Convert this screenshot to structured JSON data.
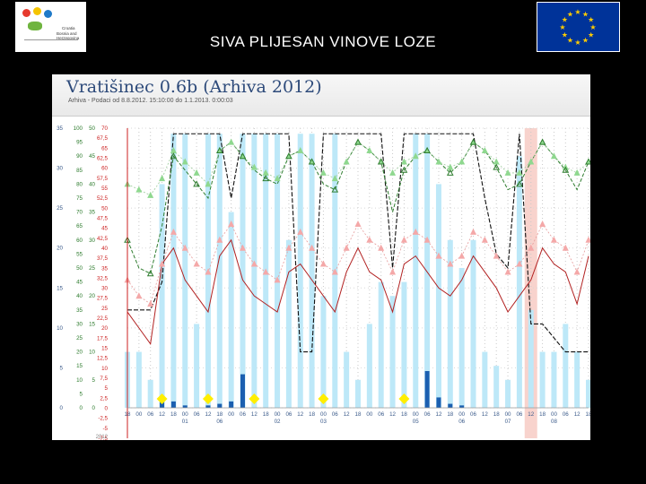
{
  "slide": {
    "title": "SIVA PLIJESAN VINOVE LOZE"
  },
  "logos": {
    "left": {
      "name": "croatia-bih-logo",
      "lines": [
        "Croatia",
        "Bosnia and Herzegovina"
      ]
    },
    "right": {
      "name": "eu-flag",
      "colors": {
        "field": "#003399",
        "stars": "#ffcc00"
      }
    }
  },
  "chart_data": {
    "type": "line",
    "title": "Vratišinec 0.6b (Arhiva 2012)",
    "subtitle": "Arhiva - Podaci od 8.8.2012. 15:10:00 do 1.1.2013. 0:00:03",
    "y_axes": [
      {
        "ticks": [
          "35",
          "30",
          "25",
          "20",
          "15",
          "10",
          "5",
          "0"
        ],
        "color": "#3a5a8a"
      },
      {
        "ticks": [
          "100",
          "95",
          "90",
          "85",
          "80",
          "75",
          "70",
          "65",
          "60",
          "55",
          "50",
          "45",
          "40",
          "35",
          "30",
          "25",
          "20",
          "15",
          "10",
          "5",
          "0"
        ],
        "color": "#2b7a2b"
      },
      {
        "ticks": [
          "50",
          "45",
          "40",
          "35",
          "30",
          "25",
          "20",
          "15",
          "10",
          "5",
          "0"
        ],
        "color": "#2b7a2b"
      },
      {
        "ticks": [
          "70",
          "67,5",
          "65",
          "62,5",
          "60",
          "57,5",
          "55",
          "52,5",
          "50",
          "47,5",
          "45",
          "42,5",
          "40",
          "37,5",
          "35",
          "32,5",
          "30",
          "27,5",
          "25",
          "22,5",
          "20",
          "17,5",
          "15",
          "12,5",
          "10",
          "7,5",
          "5",
          "2,5",
          "0",
          "-2,5",
          "-5",
          "-7,5"
        ],
        "color": "#cc2222"
      }
    ],
    "x_ticks": [
      "18",
      "00",
      "06",
      "12",
      "18",
      "00",
      "06",
      "12",
      "18",
      "00",
      "06",
      "12",
      "18",
      "00",
      "06",
      "12",
      "18",
      "00",
      "06",
      "12",
      "18",
      "00",
      "06",
      "12",
      "18",
      "00",
      "06",
      "12",
      "18",
      "00",
      "06",
      "12",
      "18",
      "00",
      "06",
      "12",
      "18",
      "00",
      "06",
      "12",
      "18"
    ],
    "day_labels": [
      {
        "label": "01",
        "pos": 5
      },
      {
        "label": "06",
        "pos": 8
      },
      {
        "label": "02",
        "pos": 13
      },
      {
        "label": "03",
        "pos": 17
      },
      {
        "label": "05",
        "pos": 25
      },
      {
        "label": "06",
        "pos": 29
      },
      {
        "label": "07",
        "pos": 33
      },
      {
        "label": "08",
        "pos": 37
      }
    ],
    "year_label": "2012",
    "highlight_index": 35,
    "colors": {
      "humidity_bar": "#bde8f8",
      "rain_bar": "#1b5fb0",
      "humidity_line": "#111111",
      "temp_line": "#b22222",
      "temp_marker": "#f4a8a8",
      "green_line": "#2f7d2f",
      "green_marker": "#8fd88f",
      "leaf_wetness": "#ffee00",
      "highlight": "#f6c8c0"
    },
    "series": [
      {
        "name": "humidity_bars",
        "values": [
          20,
          20,
          10,
          80,
          98,
          98,
          30,
          98,
          98,
          70,
          98,
          98,
          98,
          98,
          60,
          98,
          98,
          40,
          98,
          20,
          10,
          30,
          45,
          40,
          45,
          98,
          98,
          80,
          60,
          50,
          60,
          20,
          15,
          10,
          90,
          35,
          20,
          20,
          30,
          20,
          10
        ]
      },
      {
        "name": "precip_bars",
        "values": [
          0,
          0,
          0,
          1.3,
          0.8,
          0.3,
          0,
          0.3,
          0.5,
          0.8,
          4.2,
          0,
          0,
          0,
          0,
          0,
          0,
          0,
          0,
          0,
          0,
          0,
          0,
          0,
          0,
          0,
          4.6,
          1.3,
          0.5,
          0.3,
          0,
          0,
          0,
          0,
          0,
          0,
          0,
          0,
          0,
          0,
          0
        ]
      },
      {
        "name": "relative_humidity",
        "values": [
          35,
          35,
          35,
          45,
          98,
          98,
          98,
          98,
          98,
          75,
          98,
          98,
          98,
          98,
          98,
          20,
          20,
          98,
          98,
          98,
          98,
          98,
          98,
          50,
          98,
          98,
          98,
          98,
          98,
          98,
          98,
          75,
          55,
          50,
          98,
          30,
          30,
          25,
          20,
          20,
          20
        ]
      },
      {
        "name": "temperature",
        "values": [
          12,
          10,
          8,
          18,
          20,
          16,
          14,
          12,
          19,
          21,
          16,
          14,
          13,
          12,
          17,
          18,
          16,
          14,
          12,
          17,
          20,
          17,
          16,
          12,
          18,
          19,
          17,
          15,
          14,
          16,
          19,
          17,
          15,
          12,
          14,
          16,
          20,
          18,
          17,
          13,
          19
        ]
      },
      {
        "name": "temp_markers",
        "values": [
          16,
          14,
          13,
          18,
          22,
          20,
          18,
          17,
          21,
          23,
          20,
          18,
          17,
          16,
          20,
          22,
          20,
          18,
          17,
          20,
          23,
          21,
          20,
          17,
          21,
          22,
          21,
          19,
          18,
          19,
          22,
          21,
          19,
          17,
          18,
          20,
          23,
          21,
          20,
          17,
          21
        ]
      },
      {
        "name": "green_line",
        "values": [
          60,
          50,
          48,
          65,
          90,
          85,
          80,
          75,
          92,
          95,
          90,
          85,
          82,
          80,
          90,
          92,
          88,
          80,
          78,
          88,
          95,
          92,
          88,
          70,
          85,
          90,
          92,
          88,
          84,
          88,
          95,
          92,
          86,
          78,
          80,
          88,
          95,
          90,
          85,
          78,
          88
        ]
      },
      {
        "name": "green_markers",
        "values": [
          80,
          78,
          76,
          82,
          92,
          88,
          84,
          80,
          92,
          95,
          90,
          86,
          84,
          82,
          90,
          92,
          88,
          84,
          82,
          88,
          95,
          92,
          88,
          84,
          88,
          90,
          92,
          88,
          86,
          88,
          95,
          92,
          88,
          84,
          84,
          88,
          95,
          90,
          86,
          84,
          88
        ]
      },
      {
        "name": "leaf_wetness",
        "points": [
          3,
          7,
          11,
          17,
          24
        ]
      }
    ]
  }
}
